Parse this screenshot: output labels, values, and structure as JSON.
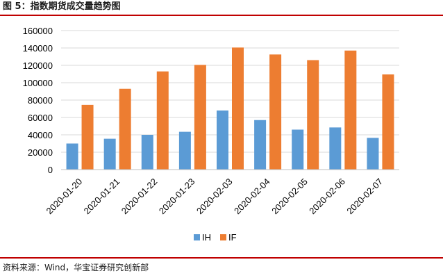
{
  "figure": {
    "title": "图 5：指数期货成交量趋势图",
    "source": "资料来源：Wind，华宝证券研究创新部"
  },
  "colors": {
    "IH": "#5b9bd5",
    "IF": "#ed7d31",
    "grid": "#d9d9d9",
    "axis": "#bfbfbf",
    "rule": "#c00000"
  },
  "chart_data": {
    "type": "bar",
    "title": "",
    "xlabel": "",
    "ylabel": "",
    "categories": [
      "2020-01-20",
      "2020-01-21",
      "2020-01-22",
      "2020-01-23",
      "2020-02-03",
      "2020-02-04",
      "2020-02-05",
      "2020-02-06",
      "2020-02-07"
    ],
    "series": [
      {
        "name": "IH",
        "values": [
          30000,
          35500,
          40000,
          43500,
          68000,
          57000,
          46000,
          48500,
          36500
        ]
      },
      {
        "name": "IF",
        "values": [
          74500,
          93000,
          113000,
          120500,
          140500,
          132500,
          126000,
          137000,
          109500
        ]
      }
    ],
    "ylim": [
      0,
      160000
    ],
    "yticks": [
      "0",
      "20000",
      "40000",
      "60000",
      "80000",
      "100000",
      "120000",
      "140000",
      "160000"
    ],
    "grid": true,
    "legend_position": "bottom"
  }
}
